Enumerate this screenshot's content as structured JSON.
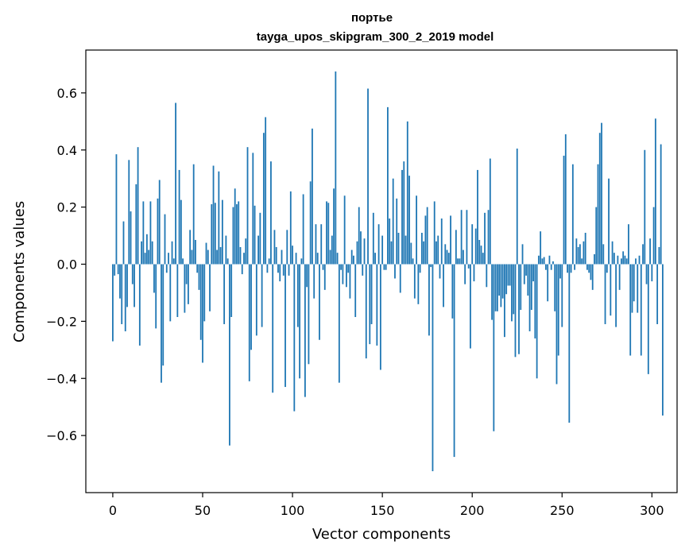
{
  "chart_data": {
    "type": "bar",
    "title_line1": "портье",
    "title_line2": "tayga_upos_skipgram_300_2_2019 model",
    "xlabel": "Vector components",
    "ylabel": "Components values",
    "xlim": [
      -15,
      314
    ],
    "ylim": [
      -0.8,
      0.75
    ],
    "xticks": [
      0,
      50,
      100,
      150,
      200,
      250,
      300
    ],
    "yticks": [
      -0.6,
      -0.4,
      -0.2,
      0.0,
      0.2,
      0.4,
      0.6
    ],
    "ytick_labels": [
      "−0.6",
      "−0.4",
      "−0.2",
      "0.0",
      "0.2",
      "0.4",
      "0.6"
    ],
    "bar_color": "#1f77b4",
    "values": [
      -0.27,
      -0.04,
      0.385,
      -0.035,
      -0.12,
      -0.21,
      0.15,
      -0.235,
      -0.15,
      0.365,
      0.185,
      -0.07,
      -0.15,
      0.28,
      0.41,
      -0.285,
      0.08,
      0.22,
      0.04,
      0.105,
      0.05,
      0.22,
      0.08,
      -0.1,
      -0.225,
      0.23,
      0.295,
      -0.415,
      -0.355,
      0.175,
      -0.03,
      0.04,
      -0.2,
      0.08,
      0.02,
      0.565,
      -0.185,
      0.33,
      0.225,
      0.02,
      -0.17,
      -0.07,
      -0.14,
      0.12,
      0.05,
      0.35,
      0.085,
      -0.03,
      -0.09,
      -0.265,
      -0.345,
      -0.2,
      0.075,
      0.05,
      -0.165,
      0.21,
      0.345,
      0.215,
      0.05,
      0.325,
      0.06,
      0.225,
      -0.21,
      0.1,
      0.02,
      -0.635,
      -0.185,
      0.2,
      0.265,
      0.21,
      0.22,
      0.06,
      -0.035,
      0.04,
      0.09,
      0.41,
      -0.41,
      -0.3,
      0.39,
      0.205,
      -0.25,
      0.1,
      0.18,
      -0.22,
      0.46,
      0.515,
      -0.03,
      0.02,
      0.36,
      -0.45,
      0.12,
      0.06,
      -0.03,
      -0.06,
      0.05,
      -0.04,
      -0.43,
      0.12,
      -0.04,
      0.255,
      0.065,
      -0.515,
      0.04,
      -0.22,
      -0.4,
      0.02,
      0.245,
      -0.465,
      -0.08,
      -0.35,
      0.29,
      0.475,
      -0.12,
      0.14,
      0.04,
      -0.265,
      0.14,
      -0.02,
      -0.09,
      0.22,
      0.215,
      0.05,
      0.1,
      0.265,
      0.675,
      0.04,
      -0.415,
      -0.02,
      -0.07,
      0.24,
      -0.08,
      -0.03,
      -0.12,
      0.05,
      0.03,
      -0.185,
      0.08,
      0.2,
      0.115,
      -0.04,
      0.09,
      -0.33,
      0.615,
      -0.28,
      -0.21,
      0.18,
      0.04,
      -0.285,
      0.14,
      -0.37,
      0.1,
      -0.02,
      -0.02,
      0.55,
      0.16,
      0.08,
      0.3,
      -0.05,
      0.23,
      0.11,
      -0.1,
      0.33,
      0.36,
      0.1,
      0.5,
      0.31,
      0.075,
      0.02,
      -0.12,
      0.24,
      -0.14,
      -0.03,
      0.11,
      0.08,
      0.17,
      0.2,
      -0.25,
      -0.01,
      -0.725,
      0.22,
      0.08,
      0.1,
      -0.05,
      0.16,
      -0.15,
      0.07,
      0.05,
      0.04,
      0.17,
      -0.19,
      -0.675,
      0.12,
      0.02,
      0.02,
      0.19,
      0.05,
      -0.07,
      0.19,
      -0.015,
      -0.295,
      0.14,
      -0.06,
      0.125,
      0.33,
      0.085,
      0.065,
      0.04,
      0.18,
      -0.08,
      0.19,
      0.37,
      -0.195,
      -0.585,
      -0.165,
      -0.165,
      -0.11,
      -0.15,
      -0.12,
      -0.255,
      -0.105,
      -0.075,
      -0.075,
      -0.2,
      -0.175,
      -0.325,
      0.405,
      -0.315,
      -0.16,
      0.07,
      -0.07,
      -0.04,
      -0.11,
      -0.235,
      -0.16,
      -0.06,
      -0.26,
      -0.4,
      0.03,
      0.115,
      0.02,
      0.025,
      -0.02,
      -0.13,
      0.03,
      -0.02,
      0.01,
      -0.165,
      -0.42,
      -0.32,
      -0.05,
      -0.22,
      0.38,
      0.455,
      -0.03,
      -0.555,
      -0.03,
      0.35,
      -0.02,
      0.09,
      0.06,
      0.07,
      0.02,
      0.08,
      0.11,
      -0.02,
      -0.03,
      -0.055,
      -0.09,
      0.035,
      0.2,
      0.35,
      0.46,
      0.495,
      0.07,
      -0.21,
      -0.03,
      0.3,
      -0.18,
      0.08,
      0.04,
      -0.22,
      0.03,
      -0.09,
      0.02,
      0.045,
      0.03,
      0.02,
      0.14,
      -0.32,
      -0.17,
      -0.13,
      0.02,
      -0.17,
      0.03,
      -0.32,
      0.07,
      0.4,
      -0.07,
      -0.385,
      0.09,
      -0.06,
      0.2,
      0.51,
      -0.21,
      0.06,
      0.42,
      -0.53
    ]
  }
}
